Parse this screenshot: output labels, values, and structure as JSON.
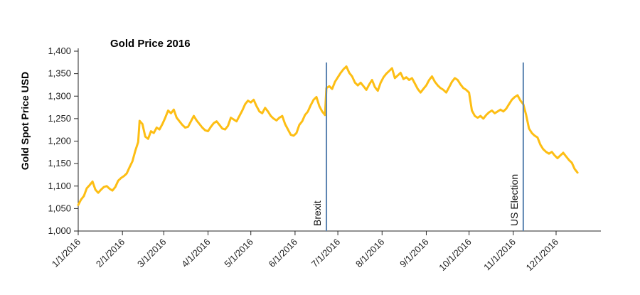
{
  "chart_data": {
    "type": "line",
    "title": "Gold Price 2016",
    "ylabel": "Gold Spot Price USD",
    "xlabel": "",
    "ylim": [
      1000,
      1400
    ],
    "ytick_step": 50,
    "grid": false,
    "legend": "none",
    "x_unit": "day_of_year_2016",
    "xtick_days": [
      1,
      32,
      61,
      92,
      122,
      153,
      183,
      214,
      245,
      275,
      306,
      336
    ],
    "xtick_labels": [
      "1/1/2016",
      "2/1/2016",
      "3/1/2016",
      "4/1/2016",
      "5/1/2016",
      "6/1/2016",
      "7/1/2016",
      "8/1/2016",
      "9/1/2016",
      "10/1/2016",
      "11/1/2016",
      "12/1/2016"
    ],
    "series": [
      {
        "name": "Gold Spot Price USD",
        "color": "#FDBE14",
        "points": [
          [
            1,
            1058
          ],
          [
            3,
            1070
          ],
          [
            5,
            1078
          ],
          [
            7,
            1095
          ],
          [
            9,
            1102
          ],
          [
            11,
            1110
          ],
          [
            13,
            1092
          ],
          [
            15,
            1085
          ],
          [
            17,
            1092
          ],
          [
            19,
            1098
          ],
          [
            21,
            1100
          ],
          [
            23,
            1094
          ],
          [
            25,
            1090
          ],
          [
            27,
            1098
          ],
          [
            29,
            1112
          ],
          [
            31,
            1118
          ],
          [
            33,
            1122
          ],
          [
            35,
            1128
          ],
          [
            37,
            1142
          ],
          [
            39,
            1155
          ],
          [
            41,
            1178
          ],
          [
            43,
            1198
          ],
          [
            44,
            1245
          ],
          [
            46,
            1238
          ],
          [
            48,
            1210
          ],
          [
            50,
            1205
          ],
          [
            52,
            1222
          ],
          [
            54,
            1218
          ],
          [
            56,
            1230
          ],
          [
            58,
            1226
          ],
          [
            60,
            1238
          ],
          [
            62,
            1252
          ],
          [
            64,
            1268
          ],
          [
            66,
            1262
          ],
          [
            68,
            1270
          ],
          [
            70,
            1252
          ],
          [
            72,
            1244
          ],
          [
            74,
            1236
          ],
          [
            76,
            1230
          ],
          [
            78,
            1232
          ],
          [
            80,
            1244
          ],
          [
            82,
            1256
          ],
          [
            84,
            1246
          ],
          [
            86,
            1238
          ],
          [
            88,
            1230
          ],
          [
            90,
            1224
          ],
          [
            92,
            1222
          ],
          [
            94,
            1232
          ],
          [
            96,
            1240
          ],
          [
            98,
            1244
          ],
          [
            100,
            1236
          ],
          [
            102,
            1228
          ],
          [
            104,
            1226
          ],
          [
            106,
            1234
          ],
          [
            108,
            1252
          ],
          [
            110,
            1248
          ],
          [
            112,
            1244
          ],
          [
            114,
            1256
          ],
          [
            116,
            1268
          ],
          [
            118,
            1282
          ],
          [
            120,
            1290
          ],
          [
            122,
            1286
          ],
          [
            124,
            1292
          ],
          [
            126,
            1278
          ],
          [
            128,
            1266
          ],
          [
            130,
            1262
          ],
          [
            132,
            1274
          ],
          [
            134,
            1266
          ],
          [
            136,
            1256
          ],
          [
            138,
            1250
          ],
          [
            140,
            1246
          ],
          [
            142,
            1252
          ],
          [
            144,
            1256
          ],
          [
            146,
            1238
          ],
          [
            148,
            1226
          ],
          [
            150,
            1214
          ],
          [
            152,
            1212
          ],
          [
            154,
            1218
          ],
          [
            156,
            1236
          ],
          [
            158,
            1244
          ],
          [
            160,
            1258
          ],
          [
            162,
            1266
          ],
          [
            164,
            1280
          ],
          [
            166,
            1292
          ],
          [
            168,
            1298
          ],
          [
            170,
            1278
          ],
          [
            172,
            1266
          ],
          [
            174,
            1258
          ],
          [
            175,
            1318
          ],
          [
            177,
            1322
          ],
          [
            179,
            1316
          ],
          [
            181,
            1332
          ],
          [
            183,
            1342
          ],
          [
            185,
            1352
          ],
          [
            187,
            1360
          ],
          [
            189,
            1366
          ],
          [
            191,
            1352
          ],
          [
            193,
            1344
          ],
          [
            195,
            1330
          ],
          [
            197,
            1324
          ],
          [
            199,
            1330
          ],
          [
            201,
            1322
          ],
          [
            203,
            1314
          ],
          [
            205,
            1326
          ],
          [
            207,
            1336
          ],
          [
            209,
            1320
          ],
          [
            211,
            1312
          ],
          [
            213,
            1330
          ],
          [
            215,
            1342
          ],
          [
            217,
            1350
          ],
          [
            219,
            1356
          ],
          [
            221,
            1362
          ],
          [
            223,
            1340
          ],
          [
            225,
            1346
          ],
          [
            227,
            1352
          ],
          [
            229,
            1338
          ],
          [
            231,
            1342
          ],
          [
            233,
            1336
          ],
          [
            235,
            1340
          ],
          [
            237,
            1328
          ],
          [
            239,
            1316
          ],
          [
            241,
            1308
          ],
          [
            243,
            1316
          ],
          [
            245,
            1324
          ],
          [
            247,
            1336
          ],
          [
            249,
            1344
          ],
          [
            251,
            1332
          ],
          [
            253,
            1324
          ],
          [
            255,
            1318
          ],
          [
            257,
            1314
          ],
          [
            259,
            1308
          ],
          [
            261,
            1320
          ],
          [
            263,
            1332
          ],
          [
            265,
            1340
          ],
          [
            267,
            1336
          ],
          [
            269,
            1326
          ],
          [
            271,
            1318
          ],
          [
            273,
            1314
          ],
          [
            275,
            1308
          ],
          [
            277,
            1268
          ],
          [
            279,
            1256
          ],
          [
            281,
            1252
          ],
          [
            283,
            1256
          ],
          [
            285,
            1250
          ],
          [
            287,
            1258
          ],
          [
            289,
            1264
          ],
          [
            291,
            1268
          ],
          [
            293,
            1262
          ],
          [
            295,
            1266
          ],
          [
            297,
            1270
          ],
          [
            299,
            1266
          ],
          [
            301,
            1272
          ],
          [
            303,
            1282
          ],
          [
            305,
            1292
          ],
          [
            307,
            1298
          ],
          [
            309,
            1302
          ],
          [
            311,
            1290
          ],
          [
            313,
            1282
          ],
          [
            315,
            1258
          ],
          [
            317,
            1228
          ],
          [
            319,
            1218
          ],
          [
            321,
            1212
          ],
          [
            323,
            1208
          ],
          [
            325,
            1192
          ],
          [
            327,
            1182
          ],
          [
            329,
            1176
          ],
          [
            331,
            1172
          ],
          [
            333,
            1176
          ],
          [
            335,
            1168
          ],
          [
            337,
            1162
          ],
          [
            339,
            1168
          ],
          [
            341,
            1174
          ],
          [
            343,
            1166
          ],
          [
            345,
            1158
          ],
          [
            347,
            1152
          ],
          [
            349,
            1138
          ],
          [
            351,
            1130
          ]
        ]
      }
    ],
    "annotations": [
      {
        "label": "Brexit",
        "day": 175,
        "color": "#5B84B1",
        "line_top_value": 1375
      },
      {
        "label": "US Election",
        "day": 313,
        "color": "#5B84B1",
        "line_top_value": 1375
      }
    ]
  }
}
